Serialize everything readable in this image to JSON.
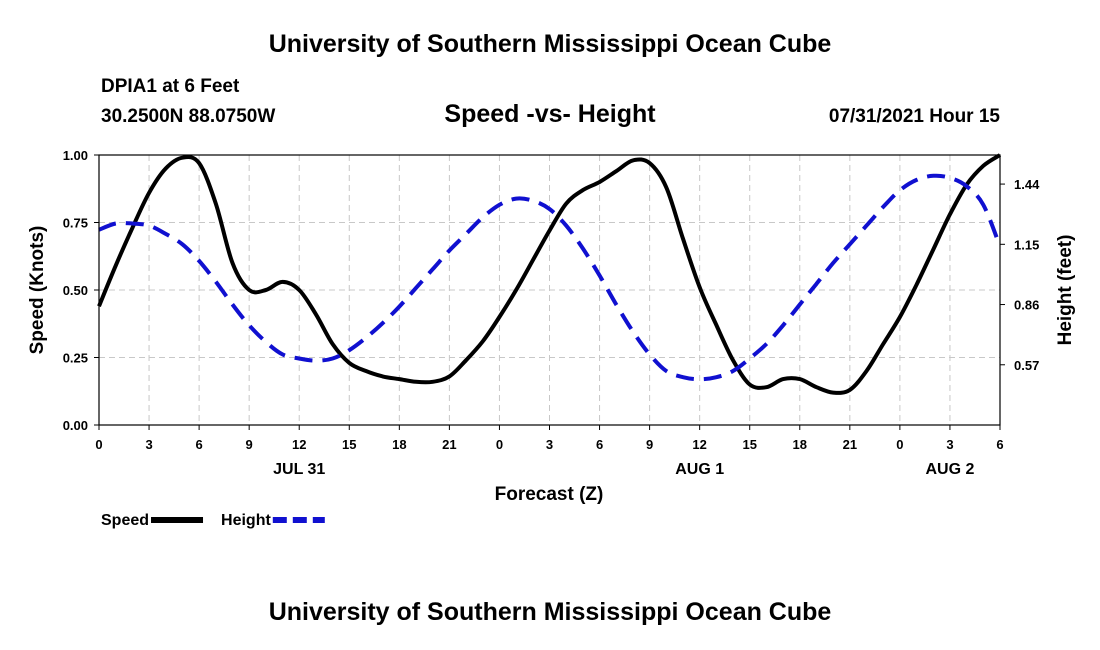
{
  "header": {
    "title": "University of Southern Mississippi Ocean Cube",
    "station": "DPIA1 at 6 Feet",
    "coordinates": "30.2500N  88.0750W",
    "datetime": "07/31/2021 Hour 15"
  },
  "footer": {
    "title": "University of Southern Mississippi Ocean Cube"
  },
  "chart_data": {
    "type": "line",
    "title": "Speed -vs- Height",
    "xlabel": "Forecast (Z)",
    "ylabel_left": "Speed (Knots)",
    "ylabel_right": "Height (feet)",
    "x_range_hours": [
      0,
      54
    ],
    "x_ticks": [
      {
        "h": 0,
        "label": "0"
      },
      {
        "h": 3,
        "label": "3"
      },
      {
        "h": 6,
        "label": "6"
      },
      {
        "h": 9,
        "label": "9"
      },
      {
        "h": 12,
        "label": "12"
      },
      {
        "h": 15,
        "label": "15"
      },
      {
        "h": 18,
        "label": "18"
      },
      {
        "h": 21,
        "label": "21"
      },
      {
        "h": 24,
        "label": "0"
      },
      {
        "h": 27,
        "label": "3"
      },
      {
        "h": 30,
        "label": "6"
      },
      {
        "h": 33,
        "label": "9"
      },
      {
        "h": 36,
        "label": "12"
      },
      {
        "h": 39,
        "label": "15"
      },
      {
        "h": 42,
        "label": "18"
      },
      {
        "h": 45,
        "label": "21"
      },
      {
        "h": 48,
        "label": "0"
      },
      {
        "h": 51,
        "label": "3"
      },
      {
        "h": 54,
        "label": "6"
      }
    ],
    "day_labels": [
      {
        "h": 12,
        "label": "JUL 31"
      },
      {
        "h": 36,
        "label": "AUG 1"
      },
      {
        "h": 51,
        "label": "AUG 2"
      }
    ],
    "ylim_left": [
      0,
      1
    ],
    "yticks_left": [
      {
        "v": 0,
        "label": "0.00"
      },
      {
        "v": 0.25,
        "label": "0.25"
      },
      {
        "v": 0.5,
        "label": "0.50"
      },
      {
        "v": 0.75,
        "label": "0.75"
      },
      {
        "v": 1,
        "label": "1.00"
      }
    ],
    "ylim_right": [
      0.28,
      1.58
    ],
    "yticks_right": [
      {
        "v": 0.57,
        "label": "0.57"
      },
      {
        "v": 0.86,
        "label": "0.86"
      },
      {
        "v": 1.15,
        "label": "1.15"
      },
      {
        "v": 1.44,
        "label": "1.44"
      }
    ],
    "grid": true,
    "series": [
      {
        "name": "Speed",
        "axis": "left",
        "color": "#000000",
        "style": "solid",
        "x": [
          0,
          1,
          2,
          3,
          4,
          5,
          6,
          7,
          8,
          9,
          10,
          11,
          12,
          13,
          14,
          15,
          16,
          17,
          18,
          19,
          20,
          21,
          22,
          23,
          24,
          25,
          26,
          27,
          28,
          29,
          30,
          31,
          32,
          33,
          34,
          35,
          36,
          37,
          38,
          39,
          40,
          41,
          42,
          43,
          44,
          45,
          46,
          47,
          48,
          49,
          50,
          51,
          52,
          53,
          54
        ],
        "values": [
          0.44,
          0.59,
          0.73,
          0.86,
          0.95,
          0.99,
          0.97,
          0.82,
          0.6,
          0.5,
          0.5,
          0.53,
          0.5,
          0.41,
          0.3,
          0.23,
          0.2,
          0.18,
          0.17,
          0.16,
          0.16,
          0.18,
          0.24,
          0.31,
          0.4,
          0.5,
          0.61,
          0.72,
          0.82,
          0.87,
          0.9,
          0.94,
          0.98,
          0.97,
          0.88,
          0.69,
          0.51,
          0.37,
          0.24,
          0.15,
          0.14,
          0.17,
          0.17,
          0.14,
          0.12,
          0.13,
          0.2,
          0.3,
          0.4,
          0.52,
          0.65,
          0.78,
          0.89,
          0.96,
          1.0
        ]
      },
      {
        "name": "Height",
        "axis": "right",
        "color": "#1010d0",
        "style": "dashed",
        "x": [
          0,
          1,
          2,
          3,
          4,
          5,
          6,
          7,
          8,
          9,
          10,
          11,
          12,
          13,
          14,
          15,
          16,
          17,
          18,
          19,
          20,
          21,
          22,
          23,
          24,
          25,
          26,
          27,
          28,
          29,
          30,
          31,
          32,
          33,
          34,
          35,
          36,
          37,
          38,
          39,
          40,
          41,
          42,
          43,
          44,
          45,
          46,
          47,
          48,
          49,
          50,
          51,
          52,
          53,
          54
        ],
        "values": [
          1.22,
          1.25,
          1.25,
          1.24,
          1.2,
          1.15,
          1.07,
          0.97,
          0.86,
          0.76,
          0.68,
          0.62,
          0.6,
          0.59,
          0.6,
          0.64,
          0.7,
          0.77,
          0.85,
          0.94,
          1.03,
          1.12,
          1.2,
          1.28,
          1.34,
          1.37,
          1.36,
          1.32,
          1.24,
          1.13,
          1.0,
          0.86,
          0.73,
          0.62,
          0.54,
          0.51,
          0.5,
          0.51,
          0.54,
          0.6,
          0.67,
          0.76,
          0.86,
          0.96,
          1.06,
          1.15,
          1.24,
          1.33,
          1.41,
          1.46,
          1.48,
          1.47,
          1.43,
          1.34,
          1.14
        ]
      }
    ],
    "legend": [
      {
        "name": "Speed",
        "style": "solid",
        "color": "#000000"
      },
      {
        "name": "Height",
        "style": "dashed",
        "color": "#1010d0"
      }
    ],
    "legend_position": "bottom-left"
  }
}
